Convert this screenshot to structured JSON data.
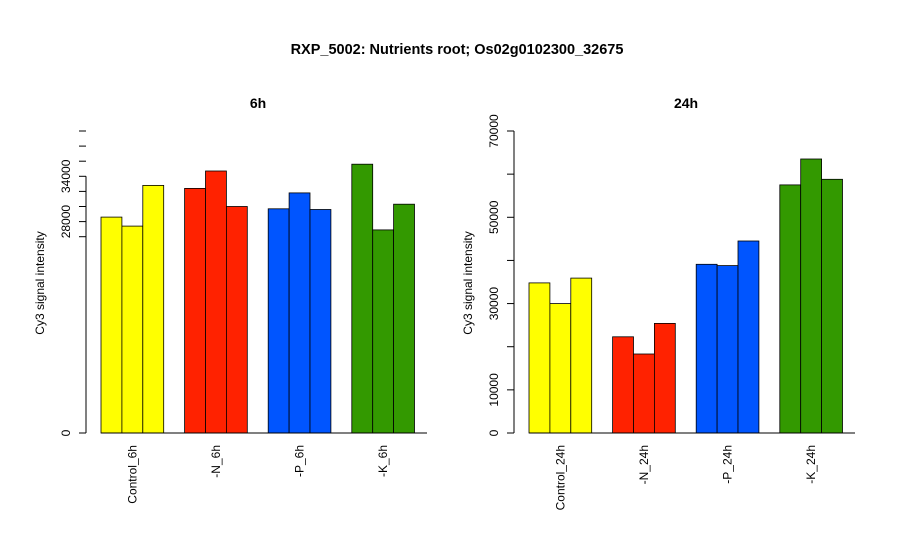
{
  "title": "RXP_5002: Nutrients root; Os02g0102300_32675",
  "chart_data": [
    {
      "type": "bar",
      "title": "6h",
      "ylabel": "Cy3 signal intensity",
      "xlabel": "",
      "ylim": [
        0,
        40000
      ],
      "yticks": [
        {
          "value": 0,
          "label": "0"
        },
        {
          "value": 28000,
          "label": "28000"
        },
        {
          "value": 34000,
          "label": "34000"
        }
      ],
      "groups": [
        {
          "label": "Control_6h",
          "color": "#ffff00",
          "values": [
            28600,
            27400,
            32800
          ]
        },
        {
          "label": "-N_6h",
          "color": "#ff2200",
          "values": [
            32400,
            34700,
            30000
          ]
        },
        {
          "label": "-P_6h",
          "color": "#0055ff",
          "values": [
            29700,
            31800,
            29600
          ]
        },
        {
          "label": "-K_6h",
          "color": "#339900",
          "values": [
            35600,
            26900,
            30300
          ]
        }
      ]
    },
    {
      "type": "bar",
      "title": "24h",
      "ylabel": "Cy3 signal intensity",
      "xlabel": "",
      "ylim": [
        0,
        70000
      ],
      "yticks": [
        {
          "value": 0,
          "label": "0"
        },
        {
          "value": 10000,
          "label": "10000"
        },
        {
          "value": 30000,
          "label": "30000"
        },
        {
          "value": 50000,
          "label": "50000"
        },
        {
          "value": 70000,
          "label": "70000"
        }
      ],
      "groups": [
        {
          "label": "Control_24h",
          "color": "#ffff00",
          "values": [
            34800,
            30000,
            35900
          ]
        },
        {
          "label": "-N_24h",
          "color": "#ff2200",
          "values": [
            22300,
            18300,
            25400
          ]
        },
        {
          "label": "-P_24h",
          "color": "#0055ff",
          "values": [
            39100,
            38800,
            44500
          ]
        },
        {
          "label": "-K_24h",
          "color": "#339900",
          "values": [
            57500,
            63500,
            58800
          ]
        }
      ]
    }
  ]
}
